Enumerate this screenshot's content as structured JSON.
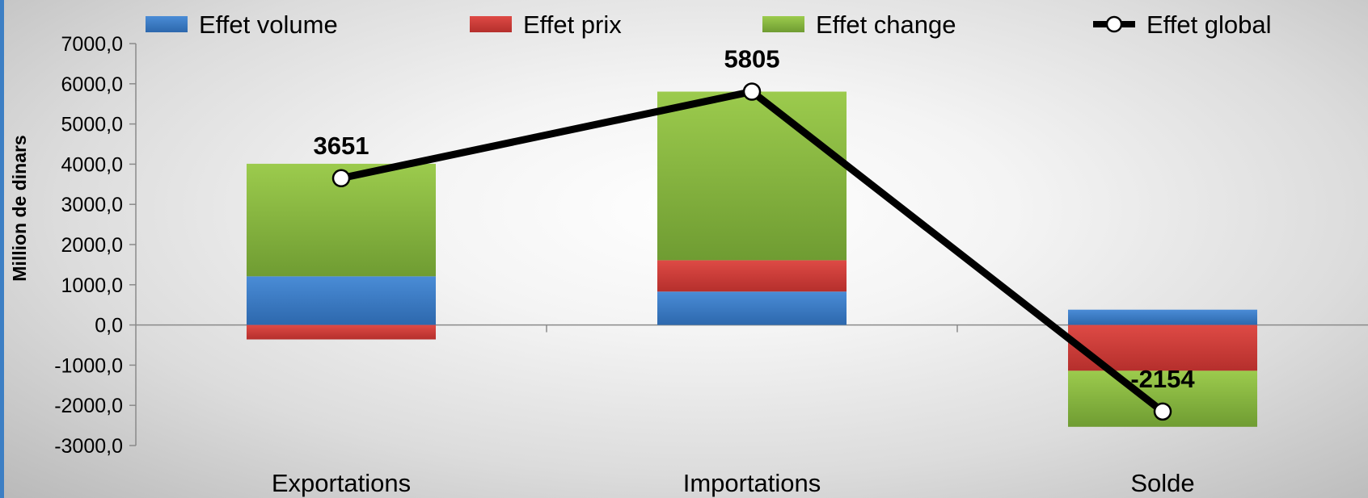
{
  "chart_data": {
    "type": "bar",
    "stacked": true,
    "title": "",
    "xlabel": "",
    "ylabel": "Million de dinars",
    "ylim": [
      -3000,
      7000
    ],
    "ytick_values": [
      -3000,
      -2000,
      -1000,
      0,
      1000,
      2000,
      3000,
      4000,
      5000,
      6000,
      7000
    ],
    "ytick_labels": [
      "-3000,0",
      "-2000,0",
      "-1000,0",
      "0,0",
      "1000,0",
      "2000,0",
      "3000,0",
      "4000,0",
      "5000,0",
      "6000,0",
      "7000,0"
    ],
    "categories": [
      "Exportations",
      "Importations",
      "Solde"
    ],
    "series": [
      {
        "name": "Effet volume",
        "type": "bar",
        "color": "#3a7dc6",
        "values": [
          1210,
          830,
          380
        ]
      },
      {
        "name": "Effet prix",
        "type": "bar",
        "color": "#cf3b3b",
        "values": [
          -360,
          780,
          -1140
        ]
      },
      {
        "name": "Effet change",
        "type": "bar",
        "color": "#8fc043",
        "values": [
          2800,
          4195,
          -1394
        ]
      },
      {
        "name": "Effet global",
        "type": "line",
        "color": "#000000",
        "values": [
          3651,
          5805,
          -2154
        ]
      }
    ],
    "data_labels": [
      "3651",
      "5805",
      "-2154"
    ],
    "legend_position": "top",
    "grid": false
  }
}
